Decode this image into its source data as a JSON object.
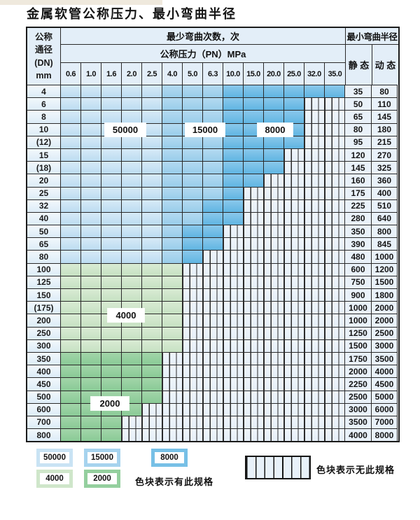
{
  "title": "金属软管公称压力、最小弯曲半径",
  "table": {
    "dn_header_lines": [
      "公称",
      "通径",
      "(DN)",
      "mm"
    ],
    "bend_header": "最少弯曲次数，次",
    "pressure_header": "公称压力（PN）MPa",
    "pressures": [
      "0.6",
      "1.0",
      "1.6",
      "2.0",
      "2.5",
      "4.0",
      "5.0",
      "6.3",
      "10.0",
      "15.0",
      "20.0",
      "25.0",
      "32.0",
      "35.0"
    ],
    "radius_header": "最小弯曲半径",
    "static_header": "静 态",
    "dynamic_header": "动 态",
    "rows": [
      {
        "dn": "4",
        "bands": [
          [
            "50000",
            5
          ],
          [
            "15000",
            3
          ],
          [
            "8000",
            6
          ]
        ],
        "static": "35",
        "dynamic": "80"
      },
      {
        "dn": "6",
        "bands": [
          [
            "50000",
            5
          ],
          [
            "15000",
            3
          ],
          [
            "8000",
            4
          ]
        ],
        "static": "50",
        "dynamic": "110"
      },
      {
        "dn": "8",
        "bands": [
          [
            "50000",
            5
          ],
          [
            "15000",
            3
          ],
          [
            "8000",
            4
          ]
        ],
        "static": "65",
        "dynamic": "145"
      },
      {
        "dn": "10",
        "bands": [
          [
            "50000",
            5
          ],
          [
            "15000",
            3
          ],
          [
            "8000",
            4
          ]
        ],
        "static": "80",
        "dynamic": "180"
      },
      {
        "dn": "(12)",
        "bands": [
          [
            "50000",
            5
          ],
          [
            "15000",
            3
          ],
          [
            "8000",
            4
          ]
        ],
        "static": "95",
        "dynamic": "215"
      },
      {
        "dn": "15",
        "bands": [
          [
            "50000",
            5
          ],
          [
            "15000",
            3
          ],
          [
            "8000",
            3
          ]
        ],
        "static": "120",
        "dynamic": "270"
      },
      {
        "dn": "(18)",
        "bands": [
          [
            "50000",
            5
          ],
          [
            "15000",
            3
          ],
          [
            "8000",
            3
          ]
        ],
        "static": "145",
        "dynamic": "325"
      },
      {
        "dn": "20",
        "bands": [
          [
            "50000",
            5
          ],
          [
            "15000",
            3
          ],
          [
            "8000",
            2
          ]
        ],
        "static": "160",
        "dynamic": "360"
      },
      {
        "dn": "25",
        "bands": [
          [
            "50000",
            5
          ],
          [
            "15000",
            3
          ],
          [
            "8000",
            1
          ]
        ],
        "static": "175",
        "dynamic": "400"
      },
      {
        "dn": "32",
        "bands": [
          [
            "50000",
            5
          ],
          [
            "15000",
            2
          ],
          [
            "8000",
            2
          ]
        ],
        "static": "225",
        "dynamic": "510"
      },
      {
        "dn": "40",
        "bands": [
          [
            "50000",
            5
          ],
          [
            "15000",
            2
          ],
          [
            "8000",
            2
          ]
        ],
        "static": "280",
        "dynamic": "640"
      },
      {
        "dn": "50",
        "bands": [
          [
            "50000",
            5
          ],
          [
            "15000",
            1
          ],
          [
            "8000",
            2
          ]
        ],
        "static": "350",
        "dynamic": "800"
      },
      {
        "dn": "65",
        "bands": [
          [
            "50000",
            5
          ],
          [
            "15000",
            1
          ],
          [
            "8000",
            2
          ]
        ],
        "static": "390",
        "dynamic": "845"
      },
      {
        "dn": "80",
        "bands": [
          [
            "50000",
            5
          ],
          [
            "15000",
            1
          ],
          [
            "8000",
            1
          ]
        ],
        "static": "480",
        "dynamic": "1000"
      },
      {
        "dn": "100",
        "bands": [
          [
            "4000",
            6
          ]
        ],
        "static": "600",
        "dynamic": "1200"
      },
      {
        "dn": "125",
        "bands": [
          [
            "4000",
            6
          ]
        ],
        "static": "750",
        "dynamic": "1500"
      },
      {
        "dn": "150",
        "bands": [
          [
            "4000",
            6
          ]
        ],
        "static": "900",
        "dynamic": "1800"
      },
      {
        "dn": "(175)",
        "bands": [
          [
            "4000",
            6
          ]
        ],
        "static": "1000",
        "dynamic": "2000"
      },
      {
        "dn": "200",
        "bands": [
          [
            "4000",
            6
          ]
        ],
        "static": "1000",
        "dynamic": "2000"
      },
      {
        "dn": "250",
        "bands": [
          [
            "4000",
            6
          ]
        ],
        "static": "1250",
        "dynamic": "2500"
      },
      {
        "dn": "300",
        "bands": [
          [
            "4000",
            6
          ]
        ],
        "static": "1500",
        "dynamic": "3000"
      },
      {
        "dn": "350",
        "bands": [
          [
            "2000",
            5
          ]
        ],
        "static": "1750",
        "dynamic": "3500"
      },
      {
        "dn": "400",
        "bands": [
          [
            "2000",
            5
          ]
        ],
        "static": "2000",
        "dynamic": "4000"
      },
      {
        "dn": "450",
        "bands": [
          [
            "2000",
            5
          ]
        ],
        "static": "2250",
        "dynamic": "4500"
      },
      {
        "dn": "500",
        "bands": [
          [
            "2000",
            5
          ]
        ],
        "static": "2500",
        "dynamic": "5000"
      },
      {
        "dn": "600",
        "bands": [
          [
            "2000",
            4
          ]
        ],
        "static": "3000",
        "dynamic": "6000"
      },
      {
        "dn": "700",
        "bands": [
          [
            "2000",
            3
          ]
        ],
        "static": "3500",
        "dynamic": "7000"
      },
      {
        "dn": "800",
        "bands": [
          [
            "2000",
            3
          ]
        ],
        "static": "4000",
        "dynamic": "8000"
      }
    ]
  },
  "overlay_labels": [
    "50000",
    "15000",
    "8000",
    "4000",
    "2000"
  ],
  "legend": {
    "items": [
      {
        "label": "50000",
        "key": "50000"
      },
      {
        "label": "15000",
        "key": "15000"
      },
      {
        "label": "8000",
        "key": "8000"
      },
      {
        "label": "4000",
        "key": "4000"
      },
      {
        "label": "2000",
        "key": "2000"
      }
    ],
    "has_spec_text": "色块表示有此规格",
    "no_spec_text": "色块表示无此规格"
  },
  "colors": {
    "50000": "#c9e3f4",
    "15000": "#a6d3ee",
    "8000": "#77c0e6",
    "4000": "#cfe6ca",
    "2000": "#94cf9e",
    "hatch_bg": "#edf3fa",
    "grid": "#2a2a2a"
  }
}
